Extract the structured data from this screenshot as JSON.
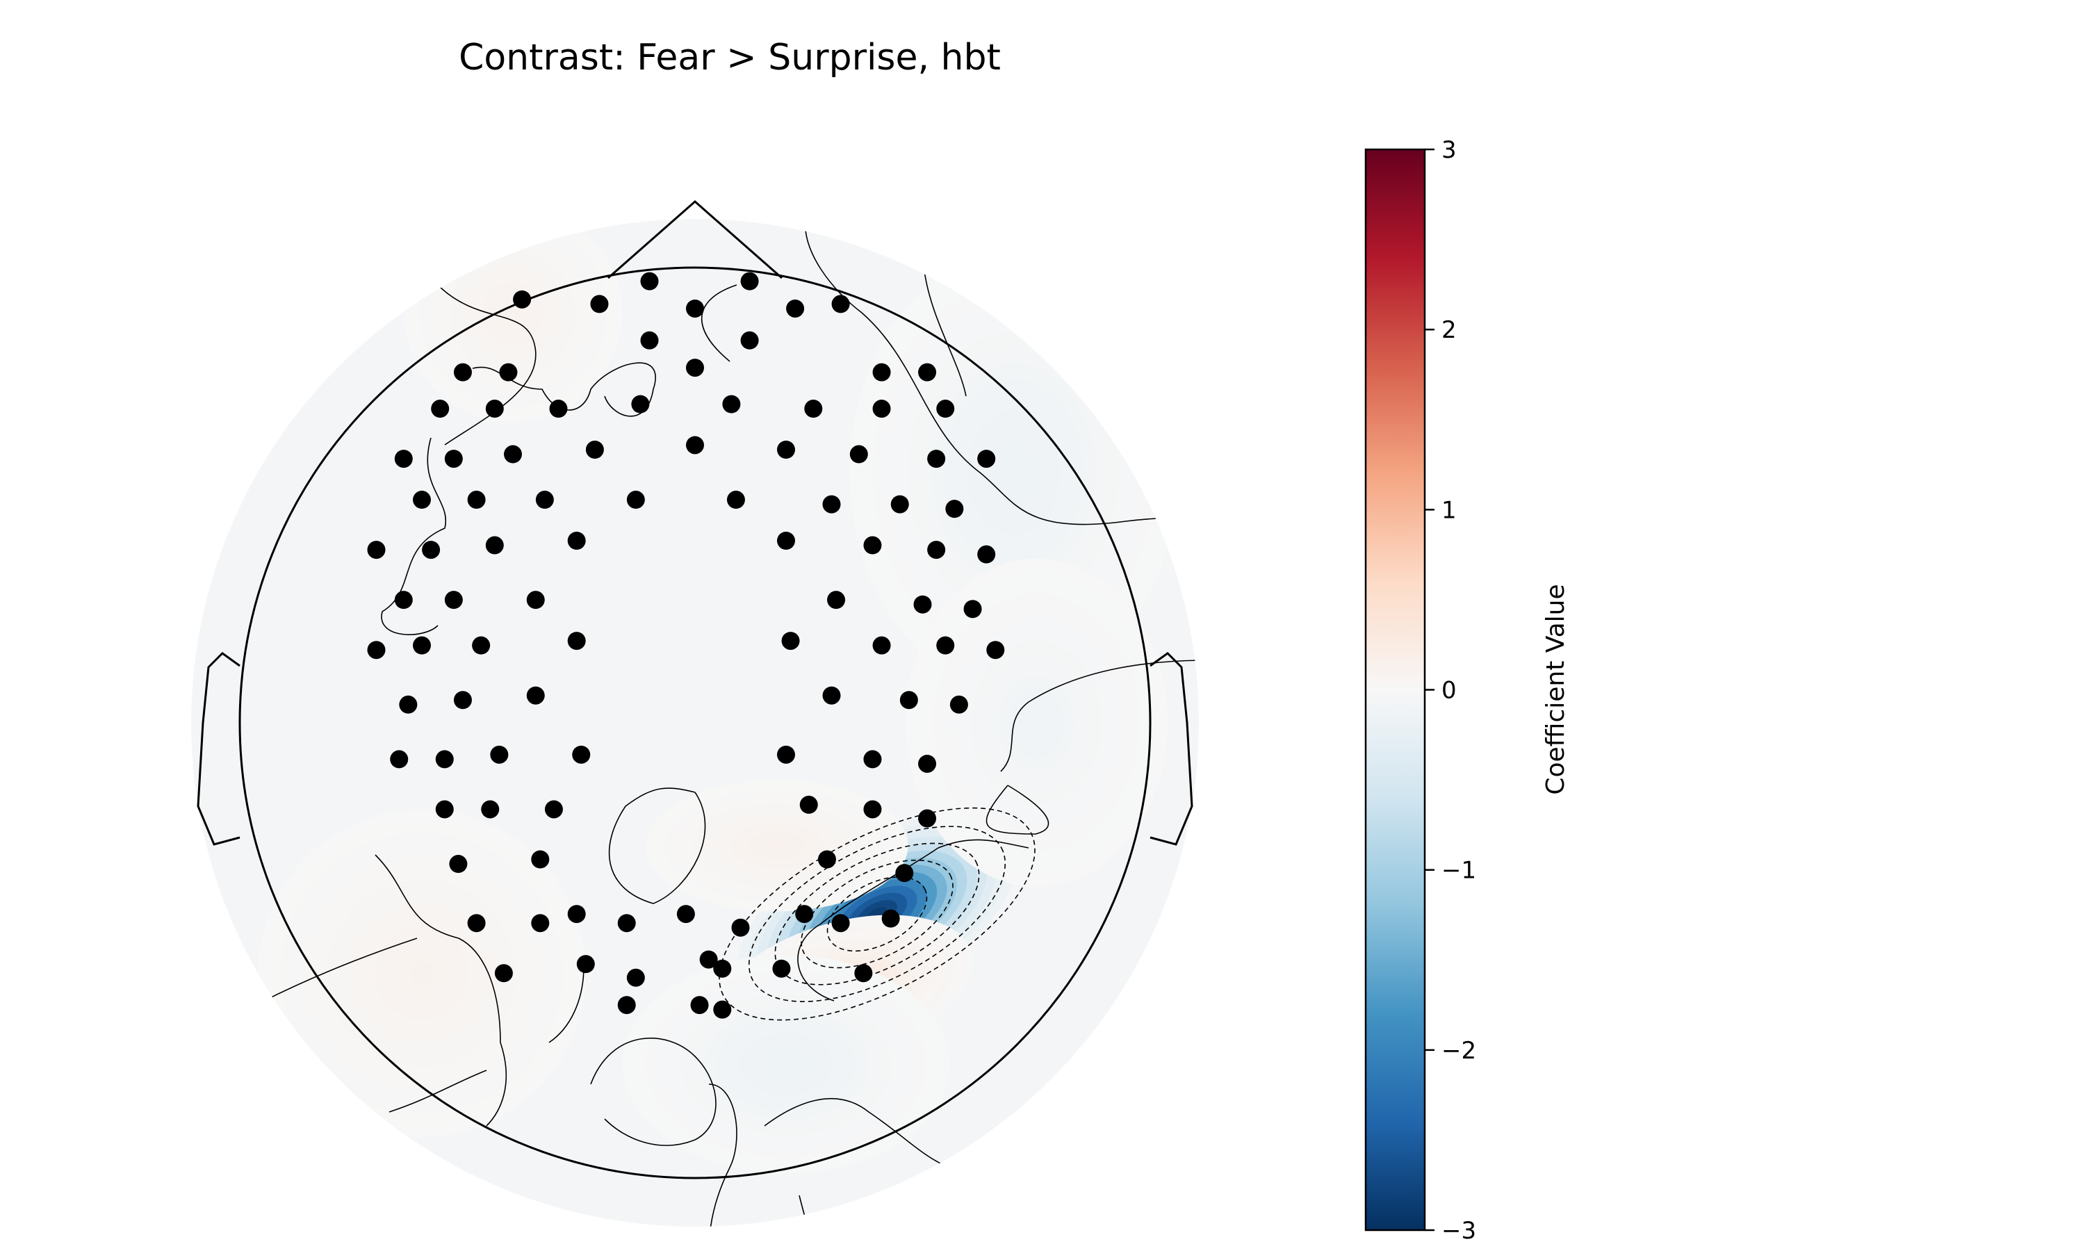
{
  "chart_data": {
    "type": "heatmap",
    "subtype": "topographic-map",
    "title": "Contrast: Fear > Surprise, hbt",
    "colorbar": {
      "label": "Coefficient Value",
      "colormap": "RdBu_r",
      "vmin": -3,
      "vmax": 3,
      "ticks": [
        3,
        2,
        1,
        0,
        -1,
        -2,
        -3
      ],
      "tick_labels": [
        "3",
        "2",
        "1",
        "0",
        "−1",
        "−2",
        "−3"
      ],
      "colors": {
        "high": "#67001f",
        "mid_high": "#d6604d",
        "zero": "#f7f7f7",
        "mid_low": "#4393c3",
        "low": "#053061"
      }
    },
    "channels": [
      [
        0.12,
        0.97
      ],
      [
        -0.1,
        0.97
      ],
      [
        0.0,
        0.91
      ],
      [
        0.22,
        0.91
      ],
      [
        0.32,
        0.92
      ],
      [
        -0.21,
        0.92
      ],
      [
        -0.38,
        0.93
      ],
      [
        -0.1,
        0.84
      ],
      [
        0.12,
        0.84
      ],
      [
        -0.51,
        0.77
      ],
      [
        -0.41,
        0.77
      ],
      [
        0.0,
        0.78
      ],
      [
        0.41,
        0.77
      ],
      [
        0.51,
        0.77
      ],
      [
        -0.56,
        0.69
      ],
      [
        -0.44,
        0.69
      ],
      [
        -0.3,
        0.69
      ],
      [
        -0.12,
        0.7
      ],
      [
        0.08,
        0.7
      ],
      [
        0.26,
        0.69
      ],
      [
        0.41,
        0.69
      ],
      [
        0.55,
        0.69
      ],
      [
        -0.64,
        0.58
      ],
      [
        -0.53,
        0.58
      ],
      [
        -0.4,
        0.59
      ],
      [
        -0.22,
        0.6
      ],
      [
        0.0,
        0.61
      ],
      [
        0.2,
        0.6
      ],
      [
        0.36,
        0.59
      ],
      [
        0.53,
        0.58
      ],
      [
        0.64,
        0.58
      ],
      [
        -0.6,
        0.49
      ],
      [
        -0.48,
        0.49
      ],
      [
        -0.33,
        0.49
      ],
      [
        -0.13,
        0.49
      ],
      [
        0.09,
        0.49
      ],
      [
        0.3,
        0.48
      ],
      [
        0.45,
        0.48
      ],
      [
        0.57,
        0.47
      ],
      [
        -0.7,
        0.38
      ],
      [
        -0.58,
        0.38
      ],
      [
        -0.44,
        0.39
      ],
      [
        -0.26,
        0.4
      ],
      [
        0.2,
        0.4
      ],
      [
        0.39,
        0.39
      ],
      [
        0.53,
        0.38
      ],
      [
        0.64,
        0.37
      ],
      [
        -0.64,
        0.27
      ],
      [
        -0.53,
        0.27
      ],
      [
        -0.35,
        0.27
      ],
      [
        0.31,
        0.27
      ],
      [
        0.5,
        0.26
      ],
      [
        0.61,
        0.25
      ],
      [
        -0.7,
        0.16
      ],
      [
        -0.6,
        0.17
      ],
      [
        -0.47,
        0.17
      ],
      [
        -0.26,
        0.18
      ],
      [
        0.21,
        0.18
      ],
      [
        0.41,
        0.17
      ],
      [
        0.55,
        0.17
      ],
      [
        0.66,
        0.16
      ],
      [
        -0.63,
        0.04
      ],
      [
        -0.51,
        0.05
      ],
      [
        -0.35,
        0.06
      ],
      [
        0.3,
        0.06
      ],
      [
        0.47,
        0.05
      ],
      [
        0.58,
        0.04
      ],
      [
        -0.65,
        -0.08
      ],
      [
        -0.55,
        -0.08
      ],
      [
        -0.43,
        -0.07
      ],
      [
        -0.25,
        -0.07
      ],
      [
        0.2,
        -0.07
      ],
      [
        0.39,
        -0.08
      ],
      [
        0.51,
        -0.09
      ],
      [
        -0.55,
        -0.19
      ],
      [
        -0.45,
        -0.19
      ],
      [
        -0.31,
        -0.19
      ],
      [
        0.25,
        -0.18
      ],
      [
        0.39,
        -0.19
      ],
      [
        0.51,
        -0.21
      ],
      [
        -0.52,
        -0.31
      ],
      [
        -0.34,
        -0.3
      ],
      [
        0.29,
        -0.3
      ],
      [
        0.46,
        -0.33
      ],
      [
        -0.48,
        -0.44
      ],
      [
        -0.34,
        -0.44
      ],
      [
        -0.26,
        -0.42
      ],
      [
        -0.15,
        -0.44
      ],
      [
        -0.02,
        -0.42
      ],
      [
        0.1,
        -0.45
      ],
      [
        0.24,
        -0.42
      ],
      [
        0.32,
        -0.44
      ],
      [
        0.43,
        -0.43
      ],
      [
        -0.42,
        -0.55
      ],
      [
        -0.24,
        -0.53
      ],
      [
        -0.13,
        -0.56
      ],
      [
        0.03,
        -0.52
      ],
      [
        0.06,
        -0.54
      ],
      [
        0.19,
        -0.54
      ],
      [
        0.37,
        -0.55
      ],
      [
        -0.15,
        -0.62
      ],
      [
        0.01,
        -0.62
      ],
      [
        0.06,
        -0.63
      ]
    ],
    "blobs": [
      {
        "x": 0.4,
        "y": -0.42,
        "value": -2.9,
        "sigma_x": 0.14,
        "sigma_y": 0.07,
        "angle_deg": -28
      },
      {
        "x": 0.18,
        "y": -0.27,
        "value": 0.12,
        "sigma_x": 0.12,
        "sigma_y": 0.06,
        "angle_deg": 0
      },
      {
        "x": 0.33,
        "y": -0.58,
        "value": 0.3,
        "sigma_x": 0.12,
        "sigma_y": 0.06,
        "angle_deg": -15
      },
      {
        "x": -0.6,
        "y": -0.55,
        "value": 0.1,
        "sigma_x": 0.15,
        "sigma_y": 0.15,
        "angle_deg": 0
      },
      {
        "x": 0.7,
        "y": 0.55,
        "value": -0.15,
        "sigma_x": 0.15,
        "sigma_y": 0.2,
        "angle_deg": 0
      },
      {
        "x": 0.75,
        "y": 0.0,
        "value": -0.1,
        "sigma_x": 0.12,
        "sigma_y": 0.15,
        "angle_deg": 0
      },
      {
        "x": 0.2,
        "y": -0.75,
        "value": -0.15,
        "sigma_x": 0.15,
        "sigma_y": 0.1,
        "angle_deg": 0
      },
      {
        "x": -0.4,
        "y": 0.9,
        "value": 0.1,
        "sigma_x": 0.1,
        "sigma_y": 0.1,
        "angle_deg": 0
      }
    ],
    "grid": false,
    "legend": "colorbar-right"
  }
}
